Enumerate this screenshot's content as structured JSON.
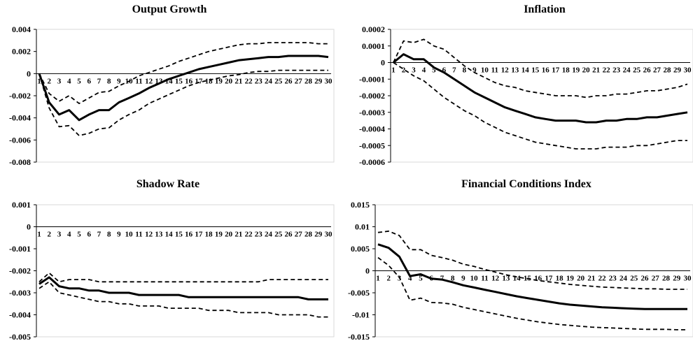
{
  "chart_data": [
    {
      "type": "line",
      "title": "Output Growth",
      "x": [
        1,
        2,
        3,
        4,
        5,
        6,
        7,
        8,
        9,
        10,
        11,
        12,
        13,
        14,
        15,
        16,
        17,
        18,
        19,
        20,
        21,
        22,
        23,
        24,
        25,
        26,
        27,
        28,
        29,
        30
      ],
      "x_tick_labels": [
        "1",
        "2",
        "3",
        "4",
        "5",
        "6",
        "7",
        "8",
        "9",
        "10",
        "11",
        "12",
        "13",
        "14",
        "15",
        "16",
        "17",
        "18",
        "19",
        "20",
        "21",
        "22",
        "23",
        "24",
        "25",
        "26",
        "27",
        "28",
        "29",
        "30"
      ],
      "y_tick_labels": [
        "0.004",
        "0.002",
        "0",
        "-0.002",
        "-0.004",
        "-0.006",
        "-0.008"
      ],
      "ylim": [
        -0.008,
        0.004
      ],
      "yticks": [
        0.004,
        0.002,
        0,
        -0.002,
        -0.004,
        -0.006,
        -0.008
      ],
      "series": [
        {
          "role": "upper",
          "style": "dashed",
          "values": [
            0,
            -0.0018,
            -0.0025,
            -0.002,
            -0.0027,
            -0.0022,
            -0.0017,
            -0.0016,
            -0.0011,
            -0.0007,
            -0.0002,
            0.0001,
            0.0004,
            0.0007,
            0.0011,
            0.0014,
            0.0017,
            0.002,
            0.0022,
            0.0024,
            0.0026,
            0.0027,
            0.0027,
            0.0028,
            0.0028,
            0.0028,
            0.0028,
            0.0028,
            0.0027,
            0.0027
          ]
        },
        {
          "role": "median",
          "style": "solid",
          "values": [
            0,
            -0.0026,
            -0.0037,
            -0.0033,
            -0.0042,
            -0.0037,
            -0.0033,
            -0.0033,
            -0.0026,
            -0.0022,
            -0.0018,
            -0.0013,
            -0.0009,
            -0.0005,
            -0.0002,
            0.0001,
            0.0004,
            0.0006,
            0.0008,
            0.001,
            0.0012,
            0.0013,
            0.0014,
            0.0015,
            0.0015,
            0.0016,
            0.0016,
            0.0016,
            0.0016,
            0.0015
          ]
        },
        {
          "role": "lower",
          "style": "dashed",
          "values": [
            0,
            -0.0031,
            -0.0048,
            -0.0047,
            -0.0056,
            -0.0054,
            -0.005,
            -0.0049,
            -0.0042,
            -0.0037,
            -0.0033,
            -0.0027,
            -0.0023,
            -0.0019,
            -0.0015,
            -0.0011,
            -0.0008,
            -0.0006,
            -0.0004,
            -0.0002,
            -0.0001,
            0.0001,
            0.0002,
            0.0002,
            0.0003,
            0.0003,
            0.0003,
            0.0003,
            0.0003,
            0.0003
          ]
        }
      ]
    },
    {
      "type": "line",
      "title": "Inflation",
      "x": [
        1,
        2,
        3,
        4,
        5,
        6,
        7,
        8,
        9,
        10,
        11,
        12,
        13,
        14,
        15,
        16,
        17,
        18,
        19,
        20,
        21,
        22,
        23,
        24,
        25,
        26,
        27,
        28,
        29,
        30
      ],
      "x_tick_labels": [
        "1",
        "2",
        "3",
        "4",
        "5",
        "6",
        "7",
        "8",
        "9",
        "10",
        "11",
        "12",
        "13",
        "14",
        "15",
        "16",
        "17",
        "18",
        "19",
        "20",
        "21",
        "22",
        "23",
        "24",
        "25",
        "26",
        "27",
        "28",
        "29",
        "30"
      ],
      "y_tick_labels": [
        "0.0002",
        "0.0001",
        "0",
        "-0.0001",
        "-0.0002",
        "-0.0003",
        "-0.0004",
        "-0.0005",
        "-0.0006"
      ],
      "ylim": [
        -0.0006,
        0.0002
      ],
      "yticks": [
        0.0002,
        0.0001,
        0,
        -0.0001,
        -0.0002,
        -0.0003,
        -0.0004,
        -0.0005,
        -0.0006
      ],
      "series": [
        {
          "role": "upper",
          "style": "dashed",
          "values": [
            0,
            0.00013,
            0.00012,
            0.00014,
            0.0001,
            8e-05,
            3e-05,
            -2e-05,
            -6e-05,
            -9e-05,
            -0.00012,
            -0.00014,
            -0.00015,
            -0.00017,
            -0.00018,
            -0.00019,
            -0.0002,
            -0.0002,
            -0.0002,
            -0.00021,
            -0.0002,
            -0.0002,
            -0.00019,
            -0.00019,
            -0.00018,
            -0.00017,
            -0.00017,
            -0.00016,
            -0.00015,
            -0.00013
          ]
        },
        {
          "role": "median",
          "style": "solid",
          "values": [
            0,
            5e-05,
            2e-05,
            2e-05,
            -3e-05,
            -6e-05,
            -0.0001,
            -0.00014,
            -0.00018,
            -0.00021,
            -0.00024,
            -0.00027,
            -0.00029,
            -0.00031,
            -0.00033,
            -0.00034,
            -0.00035,
            -0.00035,
            -0.00035,
            -0.00036,
            -0.00036,
            -0.00035,
            -0.00035,
            -0.00034,
            -0.00034,
            -0.00033,
            -0.00033,
            -0.00032,
            -0.00031,
            -0.0003
          ]
        },
        {
          "role": "lower",
          "style": "dashed",
          "values": [
            0,
            -4e-05,
            -8e-05,
            -0.00011,
            -0.00016,
            -0.00021,
            -0.00025,
            -0.00029,
            -0.00032,
            -0.00036,
            -0.00039,
            -0.00042,
            -0.00044,
            -0.00046,
            -0.00048,
            -0.00049,
            -0.0005,
            -0.00051,
            -0.00052,
            -0.00052,
            -0.00052,
            -0.00051,
            -0.00051,
            -0.00051,
            -0.0005,
            -0.0005,
            -0.00049,
            -0.00048,
            -0.00047,
            -0.00047
          ]
        }
      ]
    },
    {
      "type": "line",
      "title": "Shadow Rate",
      "x": [
        1,
        2,
        3,
        4,
        5,
        6,
        7,
        8,
        9,
        10,
        11,
        12,
        13,
        14,
        15,
        16,
        17,
        18,
        19,
        20,
        21,
        22,
        23,
        24,
        25,
        26,
        27,
        28,
        29,
        30
      ],
      "x_tick_labels": [
        "1",
        "2",
        "3",
        "4",
        "5",
        "6",
        "7",
        "8",
        "9",
        "10",
        "11",
        "12",
        "13",
        "14",
        "15",
        "16",
        "17",
        "18",
        "19",
        "20",
        "21",
        "22",
        "23",
        "24",
        "25",
        "26",
        "27",
        "28",
        "29",
        "30"
      ],
      "y_tick_labels": [
        "0.001",
        "0",
        "-0.001",
        "-0.002",
        "-0.003",
        "-0.004",
        "-0.005"
      ],
      "ylim": [
        -0.005,
        0.001
      ],
      "yticks": [
        0.001,
        0,
        -0.001,
        -0.002,
        -0.003,
        -0.004,
        -0.005
      ],
      "series": [
        {
          "role": "upper",
          "style": "dashed",
          "values": [
            -0.0025,
            -0.0021,
            -0.0025,
            -0.0024,
            -0.0024,
            -0.0024,
            -0.0025,
            -0.0025,
            -0.0025,
            -0.0025,
            -0.0025,
            -0.0025,
            -0.0025,
            -0.0025,
            -0.0025,
            -0.0025,
            -0.0025,
            -0.0025,
            -0.0025,
            -0.0025,
            -0.0025,
            -0.0025,
            -0.0025,
            -0.0024,
            -0.0024,
            -0.0024,
            -0.0024,
            -0.0024,
            -0.0024,
            -0.0024
          ]
        },
        {
          "role": "median",
          "style": "solid",
          "values": [
            -0.0026,
            -0.0023,
            -0.0027,
            -0.0028,
            -0.0028,
            -0.0029,
            -0.0029,
            -0.003,
            -0.003,
            -0.003,
            -0.0031,
            -0.0031,
            -0.0031,
            -0.0031,
            -0.0031,
            -0.0032,
            -0.0032,
            -0.0032,
            -0.0032,
            -0.0032,
            -0.0032,
            -0.0032,
            -0.0032,
            -0.0032,
            -0.0032,
            -0.0032,
            -0.0032,
            -0.0033,
            -0.0033,
            -0.0033
          ]
        },
        {
          "role": "lower",
          "style": "dashed",
          "values": [
            -0.0028,
            -0.0025,
            -0.003,
            -0.0031,
            -0.0032,
            -0.0033,
            -0.0034,
            -0.0034,
            -0.0035,
            -0.0035,
            -0.0036,
            -0.0036,
            -0.0036,
            -0.0037,
            -0.0037,
            -0.0037,
            -0.0037,
            -0.0038,
            -0.0038,
            -0.0038,
            -0.0039,
            -0.0039,
            -0.0039,
            -0.0039,
            -0.004,
            -0.004,
            -0.004,
            -0.004,
            -0.0041,
            -0.0041
          ]
        }
      ]
    },
    {
      "type": "line",
      "title": "Financial Conditions Index",
      "x": [
        1,
        2,
        3,
        4,
        5,
        6,
        7,
        8,
        9,
        10,
        11,
        12,
        13,
        14,
        15,
        16,
        17,
        18,
        19,
        20,
        21,
        22,
        23,
        24,
        25,
        26,
        27,
        28,
        29,
        30
      ],
      "x_tick_labels": [
        "1",
        "2",
        "3",
        "4",
        "5",
        "6",
        "7",
        "8",
        "9",
        "10",
        "11",
        "12",
        "13",
        "14",
        "15",
        "16",
        "17",
        "18",
        "19",
        "20",
        "21",
        "22",
        "23",
        "24",
        "25",
        "26",
        "27",
        "28",
        "29",
        "30"
      ],
      "y_tick_labels": [
        "0.015",
        "0.01",
        "0.005",
        "0",
        "-0.005",
        "-0.01",
        "-0.015"
      ],
      "ylim": [
        -0.015,
        0.015
      ],
      "yticks": [
        0.015,
        0.01,
        0.005,
        0,
        -0.005,
        -0.01,
        -0.015
      ],
      "series": [
        {
          "role": "upper",
          "style": "dashed",
          "values": [
            0.0087,
            0.009,
            0.008,
            0.0048,
            0.0048,
            0.0035,
            0.003,
            0.0024,
            0.0015,
            0.001,
            0.0003,
            -0.0003,
            -0.0009,
            -0.0014,
            -0.0018,
            -0.0022,
            -0.0025,
            -0.0028,
            -0.0031,
            -0.0033,
            -0.0035,
            -0.0037,
            -0.0038,
            -0.0039,
            -0.004,
            -0.0041,
            -0.0041,
            -0.0042,
            -0.0042,
            -0.0042
          ]
        },
        {
          "role": "median",
          "style": "solid",
          "values": [
            0.006,
            0.0052,
            0.0032,
            -0.0012,
            -0.0008,
            -0.0018,
            -0.002,
            -0.0026,
            -0.0033,
            -0.0038,
            -0.0043,
            -0.0048,
            -0.0053,
            -0.0058,
            -0.0062,
            -0.0066,
            -0.007,
            -0.0074,
            -0.0077,
            -0.0079,
            -0.0081,
            -0.0083,
            -0.0084,
            -0.0085,
            -0.0086,
            -0.0087,
            -0.0087,
            -0.0087,
            -0.0087,
            -0.0087
          ]
        },
        {
          "role": "lower",
          "style": "dashed",
          "values": [
            0.003,
            0.0012,
            -0.0015,
            -0.0067,
            -0.0062,
            -0.0072,
            -0.0073,
            -0.0076,
            -0.0083,
            -0.0088,
            -0.0093,
            -0.0098,
            -0.0103,
            -0.0108,
            -0.0112,
            -0.0116,
            -0.0119,
            -0.0122,
            -0.0124,
            -0.0126,
            -0.0128,
            -0.0129,
            -0.013,
            -0.0131,
            -0.0132,
            -0.0133,
            -0.0133,
            -0.0133,
            -0.0134,
            -0.0134
          ]
        }
      ]
    }
  ]
}
